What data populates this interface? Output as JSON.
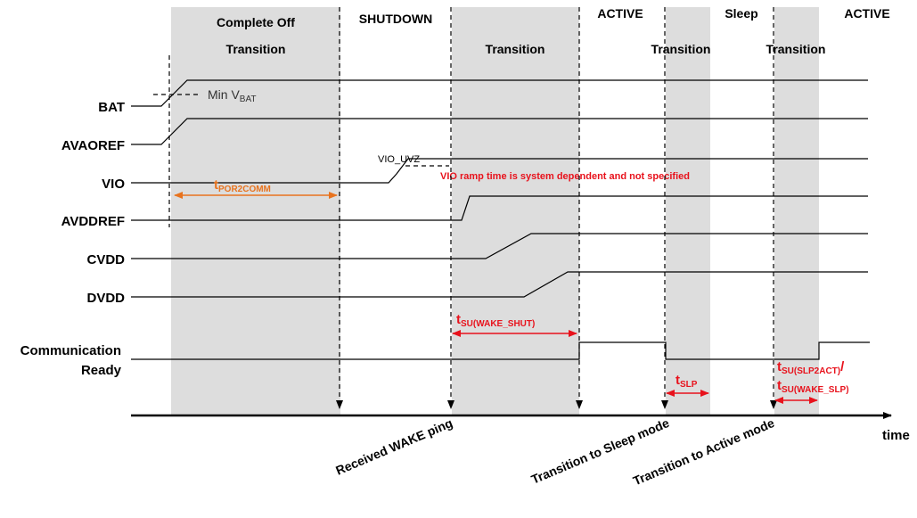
{
  "headers": {
    "complete_off": "Complete Off",
    "transition_1": "Transition",
    "shutdown": "SHUTDOWN",
    "transition_2": "Transition",
    "active_1": "ACTIVE",
    "transition_3": "Transition",
    "sleep": "Sleep",
    "transition_4": "Transition",
    "active_2": "ACTIVE"
  },
  "signals": {
    "bat": "BAT",
    "avaoref": "AVAOREF",
    "vio": "VIO",
    "avddref": "AVDDREF",
    "cvdd": "CVDD",
    "dvdd": "DVDD",
    "comm_line1": "Communication",
    "comm_line2": "Ready"
  },
  "annotations": {
    "min_vbat_prefix": "Min V",
    "min_vbat_sub": "BAT",
    "vio_uvz": "VIO_UVZ",
    "vio_ramp_note": "VIO ramp time is system dependent and not specified",
    "t_por2comm_main": "t",
    "t_por2comm_sub": "POR2COMM",
    "t_su_wake_shut_main": "t",
    "t_su_wake_shut_sub": "SU(WAKE_SHUT)",
    "t_slp_main": "t",
    "t_slp_sub": "SLP",
    "t_su_slp2act_main": "t",
    "t_su_slp2act_sub": "SU(SLP2ACT)",
    "t_su_slp2act_suffix": "/",
    "t_su_wake_slp_main": "t",
    "t_su_wake_slp_sub": "SU(WAKE_SLP)"
  },
  "axis": {
    "time_label": "time"
  },
  "events": {
    "received_wake": "Received WAKE ping",
    "to_sleep": "Transition to Sleep mode",
    "to_active": "Transition to Active mode"
  },
  "colors": {
    "shade": "#dddddd",
    "red": "#e8121c",
    "orange": "#e8731e",
    "line": "#000000",
    "gray_text": "#333333"
  }
}
